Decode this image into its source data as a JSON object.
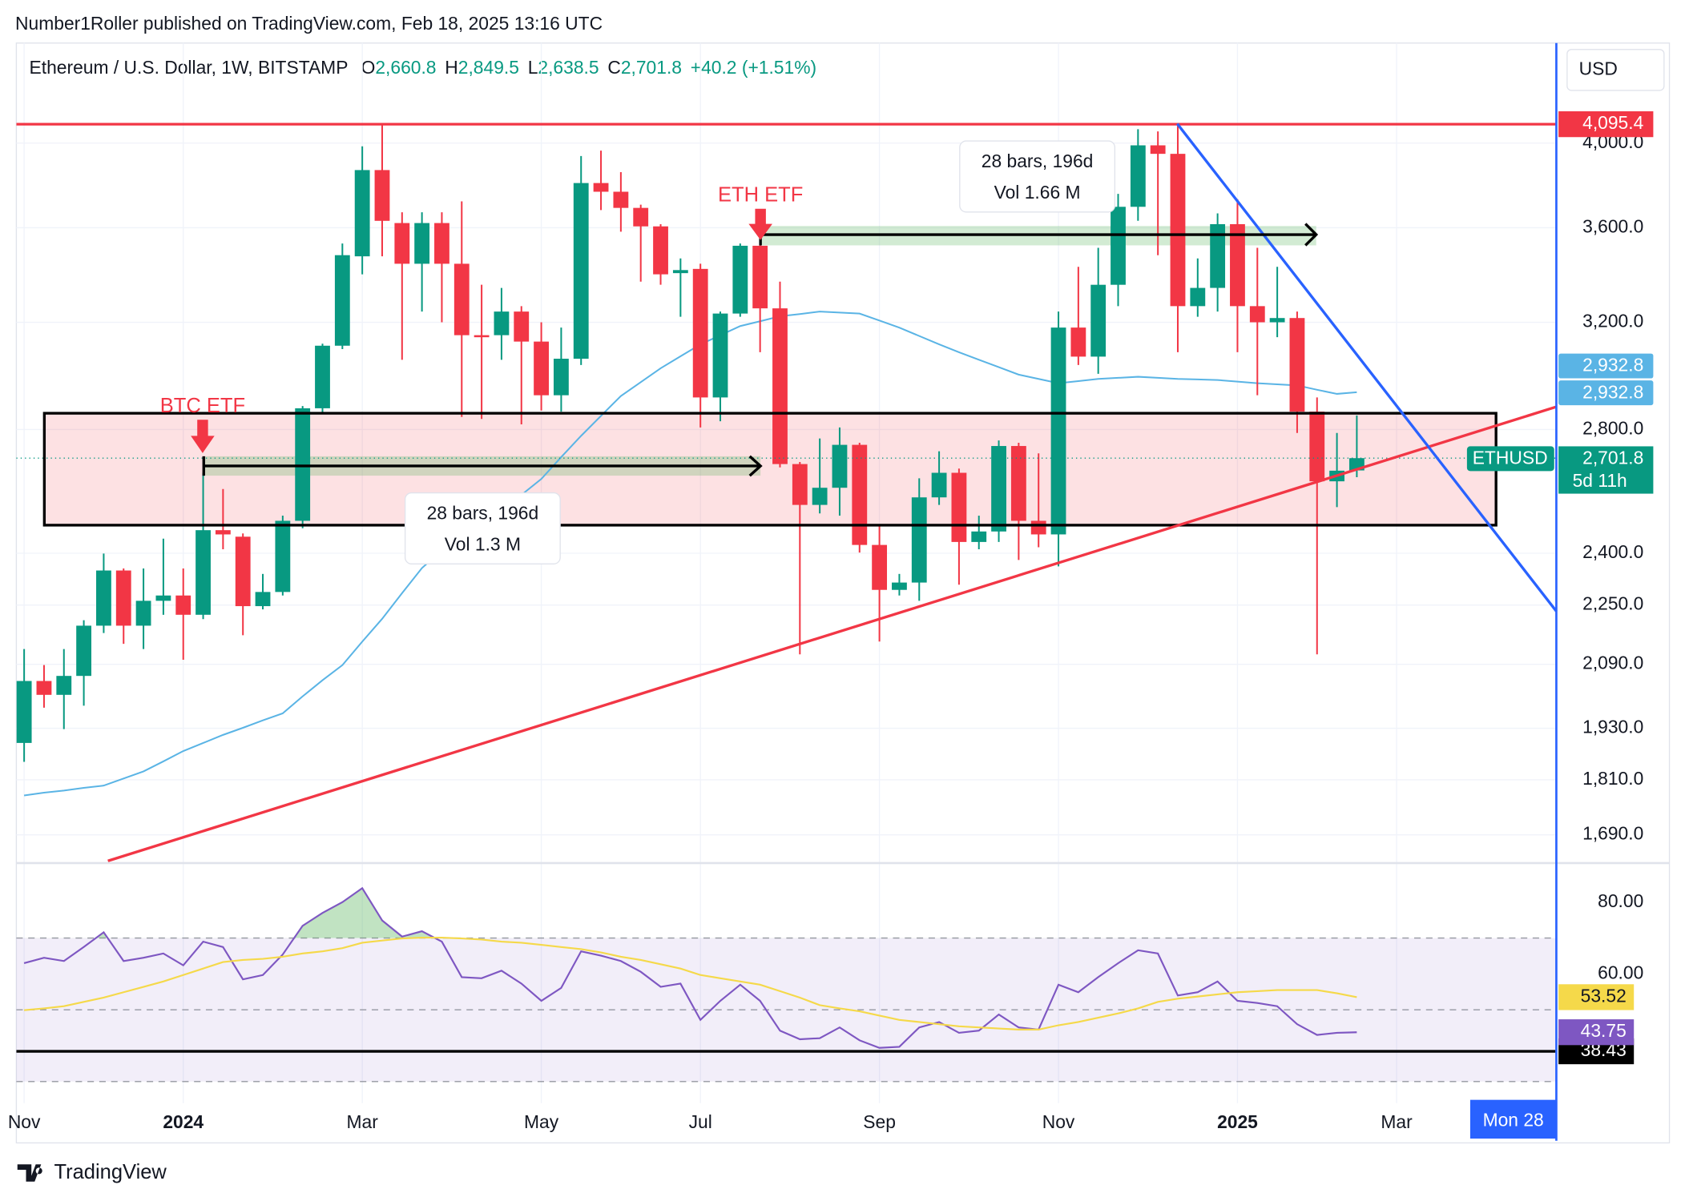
{
  "header": {
    "published": "Number1Roller published on TradingView.com, Feb 18, 2025 13:16 UTC",
    "symbol": "Ethereum / U.S. Dollar, 1W, BITSTAMP",
    "ohlc": [
      {
        "key": "O",
        "value": "2,660.8"
      },
      {
        "key": "H",
        "value": "2,849.5"
      },
      {
        "key": "L",
        "value": "2,638.5"
      },
      {
        "key": "C",
        "value": "2,701.8"
      }
    ],
    "change": "+40.2 (+1.51%)"
  },
  "chart_data": [
    {
      "type": "candlestick",
      "categories": [
        "Nov",
        null,
        null,
        null,
        null,
        null,
        null,
        null,
        "2024",
        null,
        null,
        null,
        null,
        null,
        null,
        null,
        null,
        "Mar",
        null,
        null,
        null,
        null,
        null,
        null,
        null,
        null,
        "May",
        null,
        null,
        null,
        null,
        null,
        null,
        null,
        "Jul",
        null,
        null,
        null,
        null,
        null,
        null,
        null,
        null,
        "Sep",
        null,
        null,
        null,
        null,
        null,
        null,
        null,
        null,
        "Nov",
        null,
        null,
        null,
        null,
        null,
        null,
        null,
        null,
        "2025",
        null,
        null,
        null,
        null,
        null,
        null,
        null,
        "Mar"
      ],
      "open": [
        1895,
        2047,
        2012,
        2060,
        2193,
        2349,
        2193,
        2262,
        2277,
        2223,
        2470,
        2450,
        2247,
        2287,
        2499,
        2875,
        3108,
        3474,
        3868,
        3621,
        3442,
        3621,
        3442,
        3149,
        3149,
        3243,
        3124,
        2922,
        3058,
        3806,
        3765,
        3690,
        3606,
        3402,
        3420,
        2914,
        3235,
        3520,
        3256,
        2682,
        2549,
        2604,
        2747,
        2425,
        2293,
        2314,
        2573,
        2653,
        2434,
        2466,
        2743,
        2499,
        2457,
        3179,
        3066,
        3353,
        3695,
        3989,
        3947,
        3265,
        3340,
        3616,
        3265,
        3200,
        3217,
        2863,
        2625,
        2660.8,
        null,
        null
      ],
      "high": [
        2130,
        2088,
        2130,
        2208,
        2399,
        2355,
        2355,
        2444,
        2355,
        2653,
        2600,
        2460,
        2339,
        2515,
        2883,
        3116,
        3530,
        3984,
        4095,
        3670,
        3670,
        3670,
        3720,
        3353,
        3340,
        3265,
        3200,
        3179,
        3936,
        3963,
        3858,
        3705,
        3616,
        3465,
        3442,
        3243,
        3530,
        3606,
        3366,
        2689,
        2769,
        2807,
        2754,
        2483,
        2339,
        2635,
        2725,
        2667,
        2515,
        2762,
        2754,
        2718,
        3243,
        3429,
        3511,
        3755,
        4070,
        4059,
        4095,
        3465,
        3665,
        3730,
        3511,
        3429,
        3243,
        2914,
        2788,
        2849.5,
        null,
        null
      ],
      "low": [
        1851,
        1980,
        1928,
        1985,
        2173,
        2144,
        2130,
        2223,
        2102,
        2211,
        2412,
        2167,
        2238,
        2277,
        2476,
        2856,
        3095,
        3397,
        3474,
        3054,
        3243,
        3200,
        2844,
        2837,
        3054,
        2818,
        2867,
        2863,
        3034,
        3680,
        3582,
        3366,
        3353,
        3222,
        2807,
        2829,
        3222,
        3083,
        2671,
        2116,
        2522,
        2515,
        2402,
        2150,
        2277,
        2262,
        2549,
        2308,
        2412,
        2434,
        2380,
        2418,
        2361,
        3034,
        3001,
        3265,
        3631,
        3479,
        3083,
        3222,
        3243,
        3083,
        2922,
        3141,
        2788,
        2116,
        2542,
        2638.5,
        null,
        null
      ],
      "close": [
        2047,
        2012,
        2060,
        2193,
        2349,
        2193,
        2262,
        2277,
        2223,
        2470,
        2457,
        2247,
        2287,
        2499,
        2875,
        3108,
        3479,
        3868,
        3631,
        3442,
        3621,
        3442,
        3149,
        3141,
        3243,
        3124,
        2922,
        3058,
        3806,
        3765,
        3690,
        3606,
        3397,
        3415,
        2914,
        3235,
        3520,
        3256,
        2682,
        2549,
        2604,
        2747,
        2425,
        2293,
        2314,
        2573,
        2653,
        2434,
        2466,
        2743,
        2499,
        2457,
        3179,
        3066,
        3353,
        3695,
        3989,
        3947,
        3265,
        3340,
        3616,
        3265,
        3200,
        3217,
        2863,
        2625,
        2660,
        2701.8,
        null,
        null
      ],
      "up_color": "#089981",
      "down_color": "#f23645",
      "ylim": [
        1636,
        4531
      ],
      "log_scale": true,
      "grid": true,
      "currency": "USD",
      "yticks": [
        {
          "value": 4000,
          "label": "4,000.0"
        },
        {
          "value": 3600,
          "label": "3,600.0"
        },
        {
          "value": 3200,
          "label": "3,200.0"
        },
        {
          "value": 2800,
          "label": "2,800.0"
        },
        {
          "value": 2400,
          "label": "2,400.0"
        },
        {
          "value": 2250,
          "label": "2,250.0"
        },
        {
          "value": 2090,
          "label": "2,090.0"
        },
        {
          "value": 1930,
          "label": "1,930.0"
        },
        {
          "value": 1810,
          "label": "1,810.0"
        },
        {
          "value": 1690,
          "label": "1,690.0"
        }
      ],
      "ma": {
        "color": "#5ab4e5",
        "last_label": "2,932.8",
        "values": [
          1775,
          1781,
          1786,
          1792,
          1797,
          1813,
          1829,
          1852,
          1876,
          1895,
          1914,
          1931,
          1949,
          1966,
          2008,
          2049,
          2088,
          2150,
          2212,
          2284,
          2356,
          2409,
          2462,
          2495,
          2529,
          2581,
          2633,
          2705,
          2778,
          2848,
          2919,
          2970,
          3022,
          3067,
          3113,
          3149,
          3185,
          3204,
          3224,
          3233,
          3243,
          3239,
          3235,
          3207,
          3179,
          3146,
          3113,
          3083,
          3054,
          3026,
          2998,
          2982,
          2966,
          2974,
          2982,
          2986,
          2990,
          2986,
          2982,
          2980,
          2978,
          2972,
          2966,
          2962,
          2958,
          2942,
          2927,
          2932.8,
          null,
          null
        ]
      },
      "levels": [
        {
          "value": 4095.4,
          "label": "4,095.4",
          "color": "#f23645"
        }
      ],
      "last_price": {
        "value": 2701.8,
        "label": "2,701.8",
        "symbol": "ETHUSD",
        "countdown": "5d 11h"
      },
      "annotations": [
        "BTC ETF",
        "ETH ETF"
      ],
      "measures": [
        {
          "bars": "28 bars, 196d",
          "volume": "Vol 1.3 M"
        },
        {
          "bars": "28 bars, 196d",
          "volume": "Vol 1.66 M"
        }
      ],
      "crosshair_label": "Mon 28"
    },
    {
      "type": "line",
      "ylim": [
        24,
        90
      ],
      "yticks": [
        {
          "value": 80,
          "label": "80.00"
        },
        {
          "value": 60,
          "label": "60.00"
        }
      ],
      "band": [
        30,
        70
      ],
      "midline": 50,
      "levels": [
        {
          "value": 38.43,
          "color": "#000000"
        }
      ],
      "series": [
        {
          "color": "#7e57c2",
          "values": [
            63.0,
            64.5,
            63.6,
            67.5,
            71.6,
            63.6,
            64.5,
            65.7,
            62.4,
            69.0,
            67.5,
            58.5,
            59.7,
            65.4,
            73.4,
            77.0,
            80.0,
            83.9,
            74.9,
            70.4,
            71.9,
            69.0,
            59.1,
            58.8,
            60.9,
            57.3,
            52.5,
            56.1,
            66.3,
            65.1,
            63.6,
            60.6,
            56.4,
            57.3,
            47.2,
            52.5,
            57.0,
            52.5,
            44.2,
            41.8,
            42.1,
            45.1,
            41.5,
            39.4,
            39.7,
            45.1,
            46.6,
            43.6,
            44.2,
            48.7,
            45.1,
            44.5,
            57.0,
            54.9,
            59.1,
            63.0,
            66.6,
            65.7,
            54.0,
            54.9,
            57.9,
            52.5,
            51.9,
            51.0,
            46.0,
            43.0,
            43.6,
            43.75,
            null,
            null
          ]
        },
        {
          "color": "#f5d94a",
          "values": [
            49.9,
            50.4,
            51.0,
            52.2,
            53.4,
            54.9,
            56.4,
            57.9,
            59.7,
            61.5,
            63.3,
            63.9,
            64.2,
            64.8,
            65.7,
            66.3,
            67.2,
            68.7,
            69.3,
            69.9,
            70.1,
            70.1,
            69.9,
            69.6,
            69.0,
            68.7,
            68.1,
            67.5,
            66.9,
            66.0,
            64.8,
            63.9,
            62.7,
            61.5,
            59.7,
            58.8,
            57.9,
            57.0,
            55.2,
            53.4,
            51.3,
            50.4,
            49.6,
            48.4,
            47.2,
            46.6,
            46.0,
            45.4,
            45.1,
            44.8,
            44.5,
            44.5,
            45.7,
            46.6,
            47.8,
            49.0,
            50.4,
            52.2,
            53.1,
            53.7,
            54.3,
            54.9,
            55.2,
            55.5,
            55.5,
            55.5,
            54.6,
            53.52,
            null,
            null
          ]
        }
      ]
    }
  ],
  "footer": {
    "brand": "TradingView"
  }
}
